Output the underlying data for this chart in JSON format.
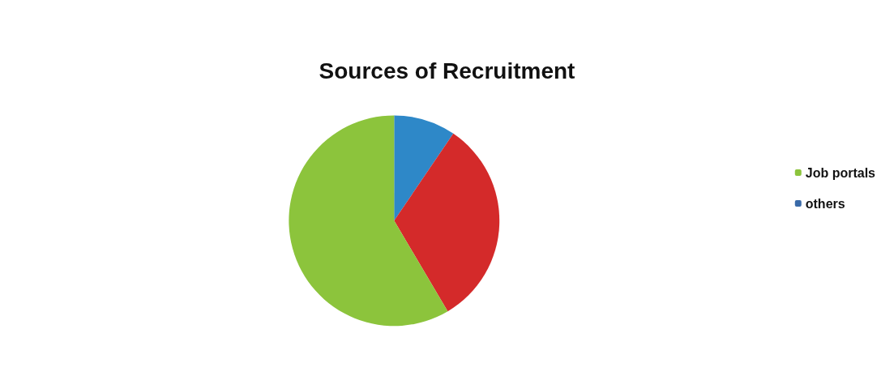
{
  "chart_data": {
    "type": "pie",
    "title": "Sources of Recruitment",
    "categories": [
      null,
      null,
      "Job portals",
      "others"
    ],
    "values": [
      9.5,
      32,
      58.5,
      0
    ],
    "colors": [
      "#2e88c8",
      "#d42a2a",
      "#8cc43c",
      "#3a6aa8"
    ],
    "legend": "right"
  }
}
